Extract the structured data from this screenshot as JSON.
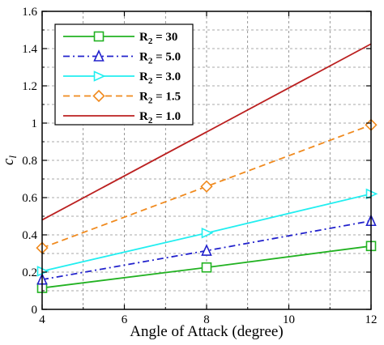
{
  "chart_data": {
    "type": "line",
    "xlabel": "Angle of Attack (degree)",
    "ylabel": "c",
    "ylabel_sub": "l",
    "xlim": [
      4,
      12
    ],
    "ylim": [
      0,
      1.6
    ],
    "x_ticks": [
      "4",
      "6",
      "8",
      "10",
      "12"
    ],
    "y_ticks": [
      "0",
      "0.2",
      "0.4",
      "0.6",
      "0.8",
      "1",
      "1.2",
      "1.4",
      "1.6"
    ],
    "grid": true,
    "legend_position": "top-left",
    "series": [
      {
        "name": "R",
        "name_sub": "2",
        "name_rest": " = 30",
        "color": "#22b222",
        "dash": "solid",
        "marker": "square",
        "x": [
          4,
          8,
          12
        ],
        "y": [
          0.115,
          0.225,
          0.34
        ]
      },
      {
        "name": "R",
        "name_sub": "2",
        "name_rest": " = 5.0",
        "color": "#2222cc",
        "dash": "dashdot",
        "marker": "triangle-up",
        "x": [
          4,
          8,
          12
        ],
        "y": [
          0.16,
          0.315,
          0.475
        ]
      },
      {
        "name": "R",
        "name_sub": "2",
        "name_rest": " = 3.0",
        "color": "#22eef0",
        "dash": "solid",
        "marker": "triangle-right",
        "x": [
          4,
          8,
          12
        ],
        "y": [
          0.205,
          0.41,
          0.62
        ]
      },
      {
        "name": "R",
        "name_sub": "2",
        "name_rest": " = 1.5",
        "color": "#f08a1e",
        "dash": "dash",
        "marker": "diamond",
        "x": [
          4,
          8,
          12
        ],
        "y": [
          0.33,
          0.66,
          0.99
        ]
      },
      {
        "name": "R",
        "name_sub": "2",
        "name_rest": " = 1.0",
        "color": "#bb2020",
        "dash": "solid",
        "marker": "none",
        "x": [
          4,
          12
        ],
        "y": [
          0.48,
          1.425
        ]
      }
    ]
  }
}
